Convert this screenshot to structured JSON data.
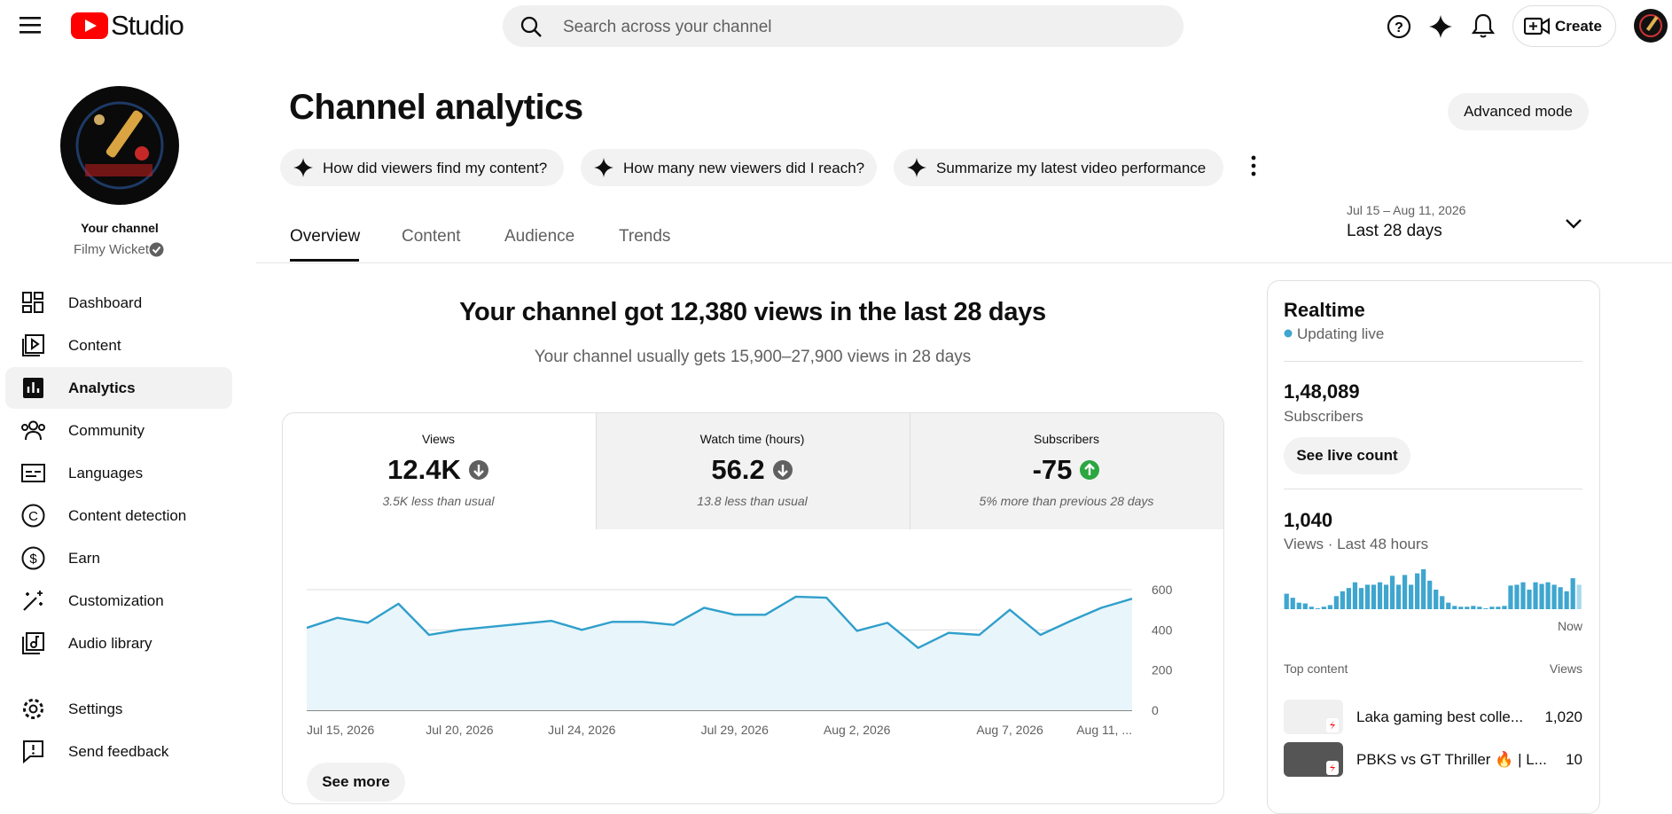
{
  "header": {
    "logo_text": "Studio",
    "search_placeholder": "Search across your channel",
    "create_button": "Create"
  },
  "sidebar": {
    "channel_label": "Your channel",
    "channel_name": "Filmy Wicket",
    "nav": [
      "Dashboard",
      "Content",
      "Analytics",
      "Community",
      "Languages",
      "Content detection",
      "Earn",
      "Customization",
      "Audio library"
    ],
    "footer_nav": [
      "Settings",
      "Send feedback"
    ]
  },
  "page": {
    "title": "Channel analytics",
    "advanced_mode": "Advanced mode",
    "suggestions": [
      "How did viewers find my content?",
      "How many new viewers did I reach?",
      "Summarize my latest video performance"
    ],
    "tabs": [
      "Overview",
      "Content",
      "Audience",
      "Trends"
    ],
    "date_range": {
      "dates": "Jul 15 – Aug 11, 2026",
      "label": "Last 28 days"
    }
  },
  "overview": {
    "headline": "Your channel got 12,380 views in the last 28 days",
    "subheadline": "Your channel usually gets 15,900–27,900 views in 28 days",
    "metrics": [
      {
        "label": "Views",
        "value": "12.4K",
        "note": "3.5K less than usual",
        "trend": "down"
      },
      {
        "label": "Watch time (hours)",
        "value": "56.2",
        "note": "13.8 less than usual",
        "trend": "down"
      },
      {
        "label": "Subscribers",
        "value": "-75",
        "note": "5% more than previous 28 days",
        "trend": "up"
      }
    ],
    "see_more": "See more"
  },
  "chart_data": {
    "type": "line",
    "categories": [
      "Jul 15, 2026",
      null,
      null,
      null,
      null,
      "Jul 20, 2026",
      null,
      null,
      null,
      "Jul 24, 2026",
      null,
      null,
      null,
      null,
      "Jul 29, 2026",
      null,
      null,
      null,
      "Aug 2, 2026",
      null,
      null,
      null,
      null,
      "Aug 7, 2026",
      null,
      null,
      null,
      "Aug 11, ..."
    ],
    "values": [
      410,
      460,
      435,
      530,
      375,
      400,
      415,
      430,
      445,
      400,
      440,
      440,
      425,
      510,
      475,
      475,
      565,
      560,
      395,
      435,
      310,
      385,
      375,
      500,
      375,
      445,
      510,
      555
    ],
    "color": "#2f9fcb",
    "fill": "#e8f5fa",
    "ylim": [
      0,
      600
    ],
    "yticks": [
      0,
      200,
      400,
      600
    ],
    "grid": true
  },
  "realtime": {
    "title": "Realtime",
    "status": "Updating live",
    "subscribers": {
      "value": "1,48,089",
      "label": "Subscribers",
      "button": "See live count"
    },
    "views": {
      "value": "1,040",
      "label": "Views · Last 48 hours"
    },
    "hourly_views": {
      "type": "bar",
      "color": "#3ea6cf",
      "last_bar_color": "#a9d9ec",
      "end_label": "Now",
      "values": [
        19,
        14,
        8,
        7,
        3,
        1,
        3,
        5,
        16,
        22,
        26,
        33,
        26,
        30,
        30,
        33,
        30,
        41,
        30,
        42,
        30,
        44,
        49,
        35,
        24,
        16,
        8,
        4,
        3,
        3,
        4,
        3,
        1,
        3,
        3,
        4,
        29,
        30,
        33,
        24,
        33,
        31,
        33,
        30,
        27,
        22,
        38,
        30
      ]
    },
    "top_content": {
      "header": "Top content",
      "views_header": "Views",
      "rows": [
        {
          "title": "Laka gaming best colle...",
          "views": "1,020"
        },
        {
          "title": "PBKS vs GT Thriller 🔥 | L...",
          "views": "10"
        }
      ]
    }
  }
}
